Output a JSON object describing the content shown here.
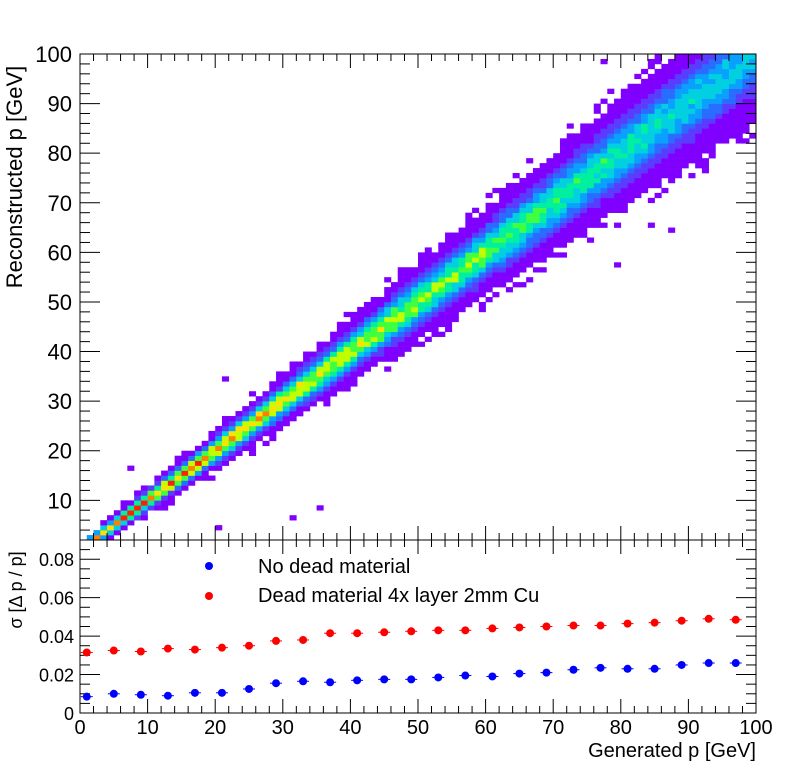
{
  "chart_data": [
    {
      "type": "heatmap",
      "xlabel": "",
      "ylabel": "Reconstructed p [GeV]",
      "xlim": [
        0,
        100
      ],
      "ylim": [
        2,
        100
      ],
      "yticks": [
        "10",
        "20",
        "30",
        "40",
        "50",
        "60",
        "70",
        "80",
        "90",
        "100"
      ],
      "colormap": [
        "#8000ff",
        "#5a3cff",
        "#2a6cff",
        "#0aa0ff",
        "#00d0e0",
        "#00f0a0",
        "#40ff40",
        "#c0ff00",
        "#ffe000",
        "#ff8000",
        "#ff2000"
      ],
      "description_free": true
    },
    {
      "type": "scatter",
      "xlabel": "Generated p [GeV]",
      "ylabel": "σ [Δ p / p]",
      "xlim": [
        0,
        100
      ],
      "ylim": [
        0,
        0.09
      ],
      "xticks": [
        "0",
        "10",
        "20",
        "30",
        "40",
        "50",
        "60",
        "70",
        "80",
        "90",
        "100"
      ],
      "yticks": [
        "0",
        "0.02",
        "0.04",
        "0.06",
        "0.08"
      ],
      "x": [
        1,
        5,
        9,
        13,
        17,
        21,
        25,
        29,
        33,
        37,
        41,
        45,
        49,
        53,
        57,
        61,
        65,
        69,
        73,
        77,
        81,
        85,
        89,
        93,
        97
      ],
      "series": [
        {
          "name": "No dead material",
          "color": "#0000ff",
          "values": [
            0.0085,
            0.01,
            0.0095,
            0.009,
            0.0105,
            0.0105,
            0.0125,
            0.0155,
            0.0165,
            0.016,
            0.017,
            0.0175,
            0.0175,
            0.0185,
            0.0195,
            0.019,
            0.0205,
            0.021,
            0.0225,
            0.0235,
            0.023,
            0.023,
            0.025,
            0.026,
            0.026
          ]
        },
        {
          "name": "Dead material 4x layer 2mm Cu",
          "color": "#ff0000",
          "values": [
            0.0315,
            0.0325,
            0.032,
            0.0335,
            0.033,
            0.034,
            0.035,
            0.0375,
            0.038,
            0.0415,
            0.0415,
            0.042,
            0.0425,
            0.043,
            0.043,
            0.044,
            0.0445,
            0.045,
            0.0455,
            0.0455,
            0.0465,
            0.047,
            0.048,
            0.049,
            0.0485
          ]
        }
      ],
      "legend_position": "top-left"
    }
  ]
}
